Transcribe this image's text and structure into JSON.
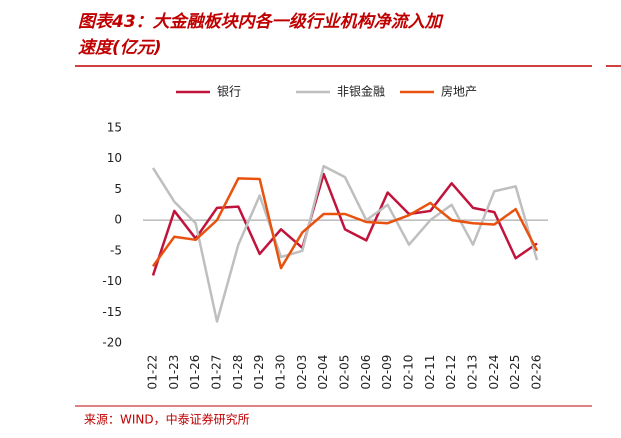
{
  "chart_data": {
    "type": "line",
    "title_lines": [
      "图表43：大金融板块内各一级行业机构净流入加",
      "速度(亿元)"
    ],
    "source": "来源：WIND，中泰证券研究所",
    "categories": [
      "01-22",
      "01-23",
      "01-26",
      "01-27",
      "01-28",
      "01-29",
      "01-30",
      "02-03",
      "02-04",
      "02-05",
      "02-06",
      "02-09",
      "02-10",
      "02-11",
      "02-12",
      "02-13",
      "02-24",
      "02-25",
      "02-26"
    ],
    "series": [
      {
        "name": "银行",
        "color": "#c0143c",
        "values": [
          -9,
          1.5,
          -3,
          2,
          2.2,
          -5.5,
          -1.5,
          -4.5,
          7.5,
          -1.5,
          -3.3,
          4.5,
          1,
          1.5,
          6,
          2,
          1.3,
          -6.2,
          -3.8
        ]
      },
      {
        "name": "非银金融",
        "color": "#bfbfbf",
        "values": [
          8.5,
          3,
          -0.5,
          -16.5,
          -4,
          4,
          -6,
          -5,
          8.8,
          7,
          0,
          2.5,
          -4,
          0,
          2.5,
          -4,
          4.7,
          5.5,
          -6.5
        ]
      },
      {
        "name": "房地产",
        "color": "#e8520e",
        "values": [
          -7.5,
          -2.7,
          -3.2,
          0,
          6.8,
          6.7,
          -7.8,
          -2,
          1,
          1,
          -0.3,
          -0.5,
          0.8,
          2.8,
          0,
          -0.5,
          -0.7,
          1.8,
          -5
        ]
      }
    ],
    "ylim": [
      -20,
      15
    ],
    "yticks": [
      -20,
      -15,
      -10,
      -5,
      0,
      5,
      10,
      15
    ],
    "grid": false,
    "legend": "top"
  }
}
